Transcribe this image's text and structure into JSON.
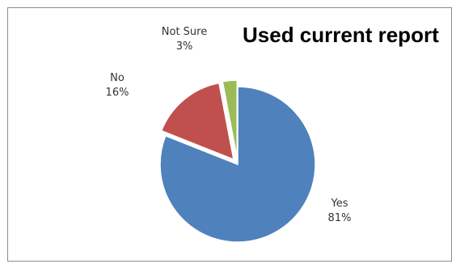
{
  "chart_data": {
    "type": "pie",
    "title": "Used current report",
    "slices": [
      {
        "label": "Yes",
        "value": 81,
        "value_label": "81%",
        "color": "#4F81BD",
        "exploded": false
      },
      {
        "label": "No",
        "value": 16,
        "value_label": "16%",
        "color": "#C0504D",
        "exploded": true
      },
      {
        "label": "Not Sure",
        "value": 3,
        "value_label": "3%",
        "color": "#9BBB59",
        "exploded": true
      }
    ],
    "legend": "none",
    "data_labels": "category-and-percent"
  }
}
